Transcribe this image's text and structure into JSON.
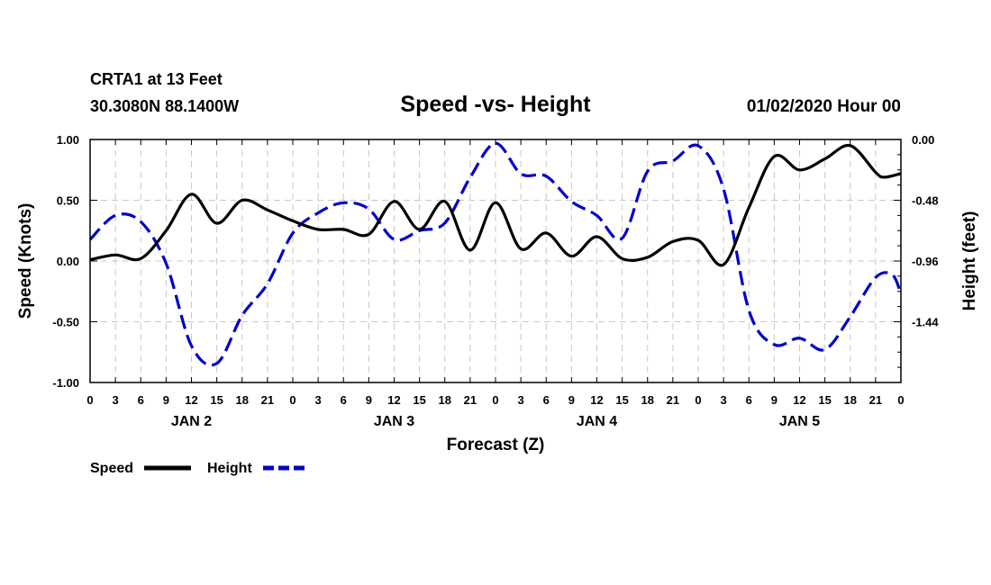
{
  "header": {
    "station_line": "CRTA1 at 13 Feet",
    "coords_line": "30.3080N 88.1400W",
    "title": "Speed -vs- Height",
    "datetime": "01/02/2020 Hour 00"
  },
  "legend": {
    "speed_label": "Speed",
    "height_label": "Height"
  },
  "chart_data": {
    "type": "line",
    "title": "Speed -vs- Height",
    "xlabel": "Forecast (Z)",
    "ylabel": "Speed (Knots)",
    "y2label": "Height (feet)",
    "x_range": [
      0,
      96
    ],
    "ylim": [
      -1.0,
      1.0
    ],
    "y2lim": [
      -1.92,
      0.0
    ],
    "y_ticks": [
      "1.00",
      "0.50",
      "0.00",
      "-0.50",
      "-1.00"
    ],
    "y_tick_values": [
      1.0,
      0.5,
      0.0,
      -0.5,
      -1.0
    ],
    "y2_ticks": [
      "0.00",
      "-0.48",
      "-0.96",
      "-1.44"
    ],
    "y2_tick_values": [
      0.0,
      -0.48,
      -0.96,
      -1.44
    ],
    "x_tick_labels": [
      "0",
      "3",
      "6",
      "9",
      "12",
      "15",
      "18",
      "21",
      "0",
      "3",
      "6",
      "9",
      "12",
      "15",
      "18",
      "21",
      "0",
      "3",
      "6",
      "9",
      "12",
      "15",
      "18",
      "21",
      "0",
      "3",
      "6",
      "9",
      "12",
      "15",
      "18",
      "21",
      "0"
    ],
    "day_labels": [
      "JAN 2",
      "JAN 3",
      "JAN 4",
      "JAN 5"
    ],
    "day_label_hours": [
      12,
      36,
      60,
      84
    ],
    "grid": true,
    "legend_position": "bottom-left",
    "series": [
      {
        "name": "Speed",
        "axis": "left",
        "color": "#000000",
        "dash": "solid",
        "x": [
          0,
          3,
          6,
          9,
          12,
          15,
          18,
          21,
          24,
          27,
          30,
          33,
          36,
          39,
          42,
          45,
          48,
          51,
          54,
          57,
          60,
          63,
          66,
          69,
          72,
          75,
          78,
          81,
          84,
          87,
          90,
          93,
          94,
          96
        ],
        "values": [
          0.01,
          0.05,
          0.02,
          0.25,
          0.55,
          0.31,
          0.5,
          0.42,
          0.33,
          0.26,
          0.26,
          0.22,
          0.49,
          0.26,
          0.49,
          0.09,
          0.48,
          0.1,
          0.23,
          0.04,
          0.2,
          0.02,
          0.03,
          0.16,
          0.17,
          -0.03,
          0.44,
          0.86,
          0.75,
          0.84,
          0.95,
          0.73,
          0.69,
          0.72
        ]
      },
      {
        "name": "Height",
        "axis": "right",
        "color": "#0000cc",
        "dash": "dashed",
        "x": [
          0,
          3,
          6,
          9,
          12,
          15,
          18,
          21,
          24,
          27,
          30,
          33,
          36,
          39,
          42,
          45,
          48,
          51,
          54,
          57,
          60,
          63,
          66,
          69,
          72,
          75,
          78,
          81,
          84,
          87,
          90,
          93,
          95,
          96
        ],
        "values": [
          -0.79,
          -0.6,
          -0.65,
          -0.98,
          -1.63,
          -1.77,
          -1.39,
          -1.14,
          -0.74,
          -0.58,
          -0.5,
          -0.55,
          -0.79,
          -0.72,
          -0.66,
          -0.3,
          -0.03,
          -0.27,
          -0.29,
          -0.49,
          -0.6,
          -0.78,
          -0.25,
          -0.17,
          -0.05,
          -0.39,
          -1.35,
          -1.62,
          -1.57,
          -1.66,
          -1.4,
          -1.09,
          -1.07,
          -1.22
        ]
      }
    ]
  }
}
